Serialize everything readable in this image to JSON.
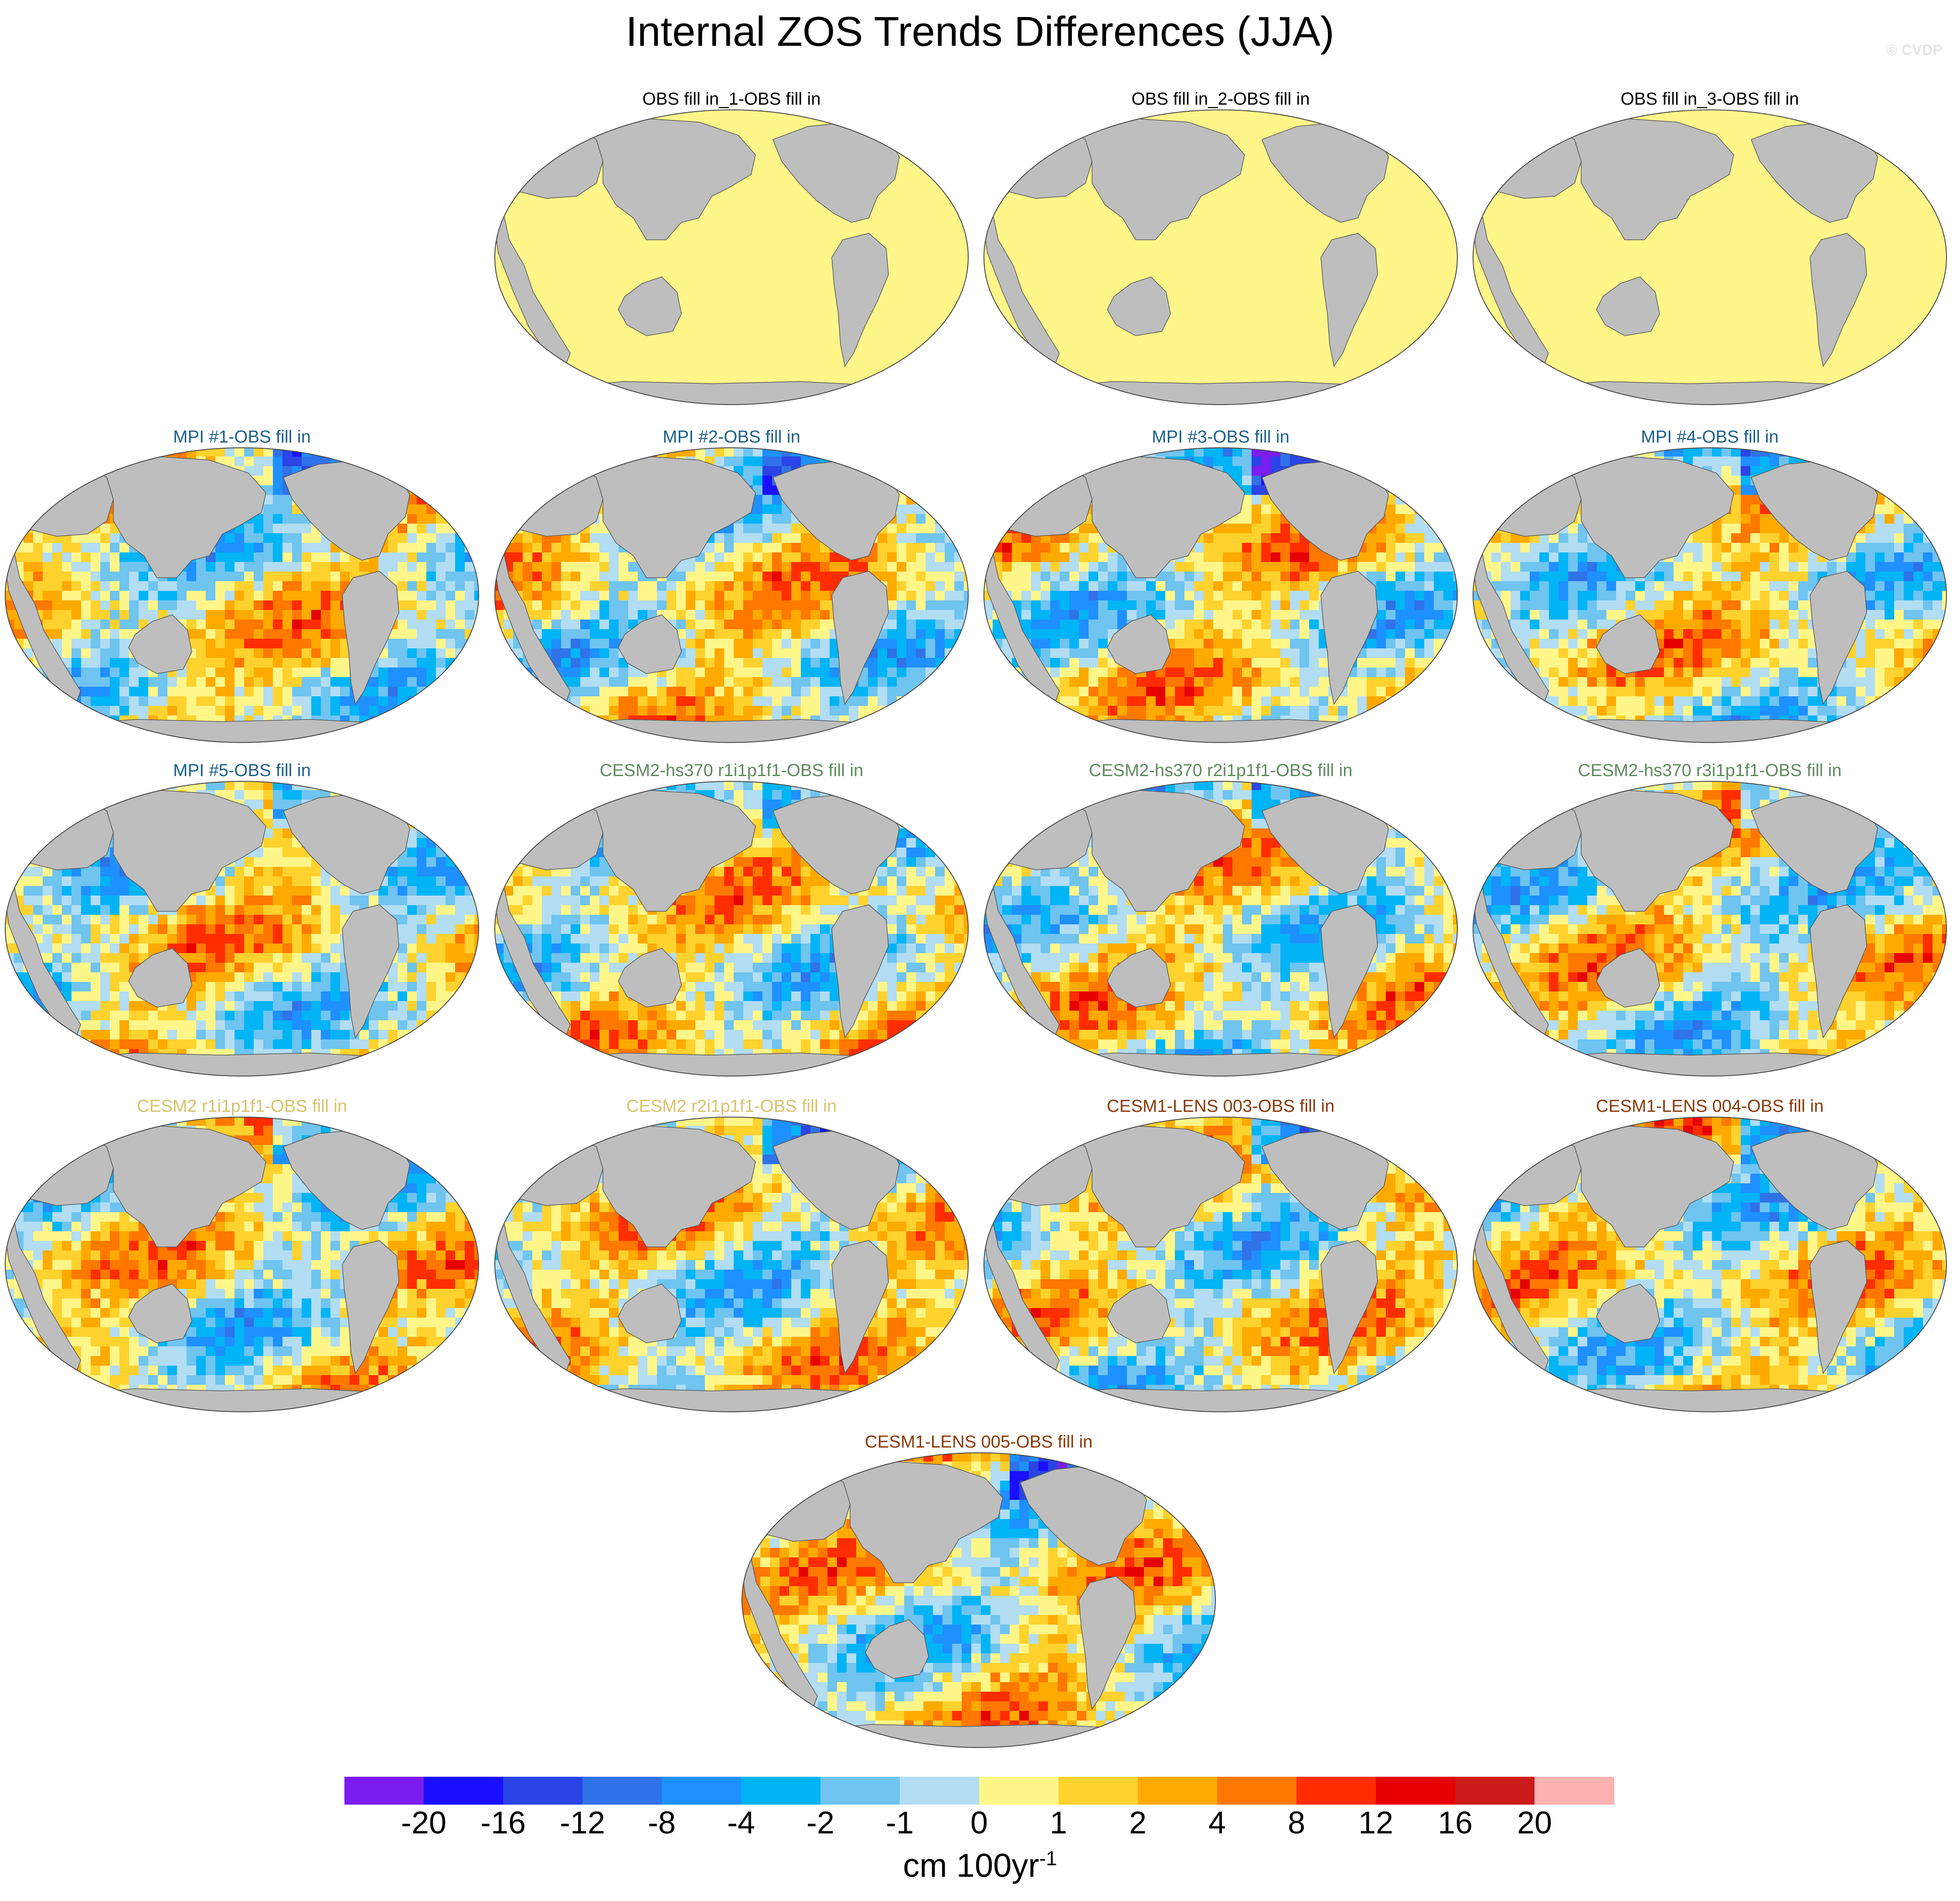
{
  "title": "Internal ZOS Trends Differences (JJA)",
  "credit": "© CVDP",
  "units_base": "cm 100yr",
  "units_exp": "-1",
  "panels": [
    {
      "label": "OBS fill in_1-OBS fill in",
      "color": "#000000",
      "kind": "obs"
    },
    {
      "label": "OBS fill in_2-OBS fill in",
      "color": "#000000",
      "kind": "obs"
    },
    {
      "label": "OBS fill in_3-OBS fill in",
      "color": "#000000",
      "kind": "obs"
    },
    {
      "label": "MPI #1-OBS fill in",
      "color": "#1b5f8a",
      "kind": "model"
    },
    {
      "label": "MPI #2-OBS fill in",
      "color": "#1b5f8a",
      "kind": "model"
    },
    {
      "label": "MPI #3-OBS fill in",
      "color": "#1b5f8a",
      "kind": "model"
    },
    {
      "label": "MPI #4-OBS fill in",
      "color": "#1b5f8a",
      "kind": "model"
    },
    {
      "label": "MPI #5-OBS fill in",
      "color": "#1b5f8a",
      "kind": "model"
    },
    {
      "label": "CESM2-hs370 r1i1p1f1-OBS fill in",
      "color": "#5e8a5e",
      "kind": "model"
    },
    {
      "label": "CESM2-hs370 r2i1p1f1-OBS fill in",
      "color": "#5e8a5e",
      "kind": "model"
    },
    {
      "label": "CESM2-hs370 r3i1p1f1-OBS fill in",
      "color": "#5e8a5e",
      "kind": "model"
    },
    {
      "label": "CESM2 r1i1p1f1-OBS fill in",
      "color": "#d8c36a",
      "kind": "model"
    },
    {
      "label": "CESM2 r2i1p1f1-OBS fill in",
      "color": "#d8c36a",
      "kind": "model"
    },
    {
      "label": "CESM1-LENS 003-OBS fill in",
      "color": "#8a3a0a",
      "kind": "model"
    },
    {
      "label": "CESM1-LENS 004-OBS fill in",
      "color": "#8a3a0a",
      "kind": "model"
    },
    {
      "label": "CESM1-LENS 005-OBS fill in",
      "color": "#8a3a0a",
      "kind": "model"
    }
  ],
  "colorbar": {
    "colors": [
      "#7b1cf0",
      "#1a10ff",
      "#2a44e6",
      "#3072e8",
      "#1e90ff",
      "#00b4f5",
      "#6fc4f0",
      "#b2ddf2",
      "#fff68a",
      "#ffd22e",
      "#ffaa00",
      "#ff7800",
      "#ff2d00",
      "#e60000",
      "#cc1a1a",
      "#ffb2b2"
    ],
    "labels": [
      "-20",
      "-16",
      "-12",
      "-8",
      "-4",
      "-2",
      "-1",
      "0",
      "1",
      "2",
      "4",
      "8",
      "12",
      "16",
      "20"
    ]
  },
  "colors": {
    "land": "#bebebe",
    "obs_fill": "#fff68a"
  }
}
